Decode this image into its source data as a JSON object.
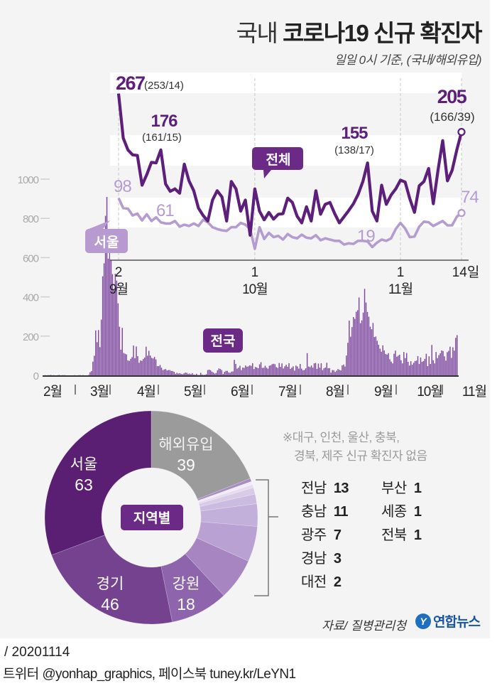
{
  "header": {
    "title_light": "국내",
    "title_bold": "코로나19 신규 확진자",
    "subtitle": "일일 0시 기준, (국내/해외유입)"
  },
  "colors": {
    "total_line": "#5c1f7a",
    "seoul_line": "#b49cd0",
    "bars": "#7f4aa0",
    "overseas": "#9b9b9b",
    "background": "#f4f4f5",
    "band_white": "#ffffff"
  },
  "chart_data": [
    {
      "id": "recent",
      "type": "line",
      "title": "최근 추이",
      "x_start": "2020-09-02",
      "x_end": "2020-11-14",
      "x_ticks": [
        {
          "day_index": 0,
          "day": "2",
          "month": "9월"
        },
        {
          "day_index": 29,
          "day": "1",
          "month": "10월"
        },
        {
          "day_index": 60,
          "day": "1",
          "month": "11월"
        },
        {
          "day_index": 73,
          "day": "14일",
          "month": ""
        }
      ],
      "ylim": [
        0,
        300
      ],
      "grid_bands": true,
      "series": [
        {
          "name": "전체",
          "values": [
            267,
            195,
            176,
            168,
            167,
            119,
            136,
            156,
            155,
            176,
            121,
            109,
            113,
            106,
            153,
            126,
            110,
            82,
            70,
            61,
            95,
            110,
            100,
            61,
            125,
            113,
            77,
            95,
            38,
            113,
            77,
            63,
            75,
            64,
            72,
            73,
            98,
            91,
            69,
            58,
            84,
            61,
            110,
            72,
            88,
            91,
            73,
            58,
            68,
            78,
            89,
            104,
            125,
            155,
            77,
            61,
            119,
            88,
            103,
            113,
            127,
            124,
            97,
            75,
            118,
            125,
            146,
            89,
            143,
            191,
            126,
            143,
            176,
            205
          ],
          "labels": [
            {
              "day_index": 0,
              "value": "267",
              "detail": "(253/14)"
            },
            {
              "day_index": 9,
              "value": "176",
              "detail": "(161/15)"
            },
            {
              "day_index": 53,
              "value": "155",
              "detail": "(138/17)"
            },
            {
              "day_index": 73,
              "value": "205",
              "detail": "(166/39)"
            }
          ],
          "tag": "전체"
        },
        {
          "name": "서울",
          "values": [
            98,
            82,
            81,
            70,
            73,
            62,
            72,
            61,
            67,
            59,
            57,
            57,
            61,
            52,
            55,
            53,
            57,
            53,
            63,
            59,
            51,
            48,
            46,
            45,
            51,
            51,
            58,
            55,
            48,
            16,
            51,
            32,
            42,
            35,
            37,
            31,
            40,
            35,
            33,
            39,
            34,
            33,
            38,
            30,
            33,
            31,
            29,
            29,
            23,
            25,
            24,
            29,
            29,
            28,
            19,
            26,
            31,
            29,
            33,
            48,
            58,
            49,
            35,
            36,
            52,
            60,
            59,
            53,
            57,
            61,
            54,
            54,
            68,
            74
          ],
          "labels": [
            {
              "day_index": 0,
              "value": "98"
            },
            {
              "day_index": 7,
              "value": "61"
            },
            {
              "day_index": 54,
              "value": "19"
            },
            {
              "day_index": 73,
              "value": "74"
            }
          ],
          "tag": "서울"
        }
      ]
    },
    {
      "id": "national",
      "type": "bar",
      "title": "전국",
      "x_start": "2020-01-20",
      "x_end": "2020-11-14",
      "ylim": [
        0,
        1000
      ],
      "y_ticks": [
        0,
        200,
        400,
        600,
        800,
        1000
      ],
      "x_tick_labels": [
        "2월",
        "3월",
        "4월",
        "5월",
        "6월",
        "7월",
        "8월",
        "9월",
        "10월",
        "11월"
      ],
      "values": [
        1,
        0,
        1,
        1,
        2,
        0,
        1,
        0,
        0,
        1,
        2,
        0,
        1,
        1,
        1,
        0,
        0,
        0,
        0,
        0,
        0,
        1,
        0,
        0,
        1,
        1,
        0,
        1,
        0,
        0,
        0,
        2,
        16,
        22,
        70,
        100,
        229,
        169,
        231,
        144,
        284,
        505,
        571,
        813,
        909,
        595,
        686,
        600,
        516,
        438,
        518,
        483,
        367,
        248,
        131,
        242,
        114,
        110,
        107,
        76,
        74,
        84,
        93,
        152,
        87,
        147,
        98,
        64,
        76,
        74,
        84,
        91,
        146,
        100,
        125,
        101,
        89,
        86,
        94,
        81,
        47,
        47,
        53,
        39,
        27,
        30,
        32,
        25,
        27,
        27,
        22,
        22,
        18,
        8,
        13,
        9,
        11,
        8,
        6,
        10,
        14,
        13,
        8,
        9,
        6,
        11,
        4,
        3,
        8,
        2,
        2,
        13,
        4,
        2,
        3,
        6,
        27,
        29,
        26,
        19,
        15,
        9,
        12,
        26,
        35,
        32,
        27,
        7,
        18,
        23,
        23,
        15,
        13,
        19,
        20,
        79,
        58,
        34,
        39,
        49,
        27,
        40,
        38,
        50,
        44,
        46,
        51,
        48,
        62,
        32,
        43,
        40,
        36,
        56,
        67,
        38,
        39,
        49,
        39,
        34,
        49,
        51,
        57,
        59,
        57,
        42,
        38,
        63,
        43,
        61,
        35,
        46,
        54,
        44,
        62,
        33,
        39,
        46,
        24,
        50,
        45,
        34,
        58,
        34,
        26,
        28,
        36,
        113,
        45,
        42,
        50,
        39,
        61,
        63,
        33,
        60,
        39,
        62,
        27,
        36,
        40,
        64,
        36,
        37,
        14,
        27,
        26,
        17,
        24,
        32,
        28,
        25,
        51,
        55,
        45,
        101,
        166,
        279,
        197,
        246,
        297,
        288,
        324,
        332,
        397,
        266,
        280,
        320,
        441,
        371,
        323,
        299,
        248,
        235,
        267,
        195,
        198,
        176,
        156,
        136,
        121,
        153,
        127,
        109,
        106,
        113,
        82,
        70,
        61,
        110,
        126,
        95,
        100,
        105,
        77,
        61,
        119,
        88,
        114,
        69,
        50,
        72,
        54,
        64,
        73,
        75,
        98,
        58,
        91,
        69,
        73,
        84,
        110,
        47,
        97,
        58,
        155,
        77,
        61,
        119,
        88,
        103,
        113,
        127,
        124,
        97,
        75,
        118,
        125,
        146,
        89,
        143,
        126,
        191,
        205
      ],
      "tag": "전국"
    },
    {
      "id": "regional",
      "type": "pie",
      "title": "지역별",
      "donut": true,
      "slices": [
        {
          "name": "해외유입",
          "value": 39
        },
        {
          "name": "부산",
          "value": 1
        },
        {
          "name": "세종",
          "value": 1
        },
        {
          "name": "전북",
          "value": 1
        },
        {
          "name": "대전",
          "value": 2
        },
        {
          "name": "경남",
          "value": 3
        },
        {
          "name": "광주",
          "value": 7
        },
        {
          "name": "충남",
          "value": 11
        },
        {
          "name": "전남",
          "value": 13
        },
        {
          "name": "강원",
          "value": 18
        },
        {
          "name": "경기",
          "value": 46
        },
        {
          "name": "서울",
          "value": 63
        }
      ],
      "slice_colors": [
        "#9b9b9b",
        "#a98cc4",
        "#f1ecf6",
        "#e6dcef",
        "#d8cbe6",
        "#cbbbe0",
        "#c3b0da",
        "#b9a2d3",
        "#a685c0",
        "#8e64ad",
        "#74428f",
        "#5a1f73"
      ],
      "labeled": [
        {
          "name": "해외유입",
          "value": "39"
        },
        {
          "name": "서울",
          "value": "63"
        },
        {
          "name": "경기",
          "value": "46"
        },
        {
          "name": "강원",
          "value": "18"
        }
      ],
      "side_list": [
        {
          "name": "전남",
          "value": "13"
        },
        {
          "name": "충남",
          "value": "11"
        },
        {
          "name": "광주",
          "value": "7"
        },
        {
          "name": "경남",
          "value": "3"
        },
        {
          "name": "대전",
          "value": "2"
        },
        {
          "name": "부산",
          "value": "1"
        },
        {
          "name": "세종",
          "value": "1"
        },
        {
          "name": "전북",
          "value": "1"
        }
      ],
      "note_line1": "※대구, 인천, 울산, 충북,",
      "note_line2": "경북, 제주 신규 확진자 없음"
    }
  ],
  "source": "자료/ 질병관리청",
  "logo": {
    "mark": "Y",
    "text": "연합뉴스"
  },
  "footer": {
    "date": "/ 20201114",
    "social": "트위터 @yonhap_graphics, 페이스북 tuney.kr/LeYN1"
  }
}
